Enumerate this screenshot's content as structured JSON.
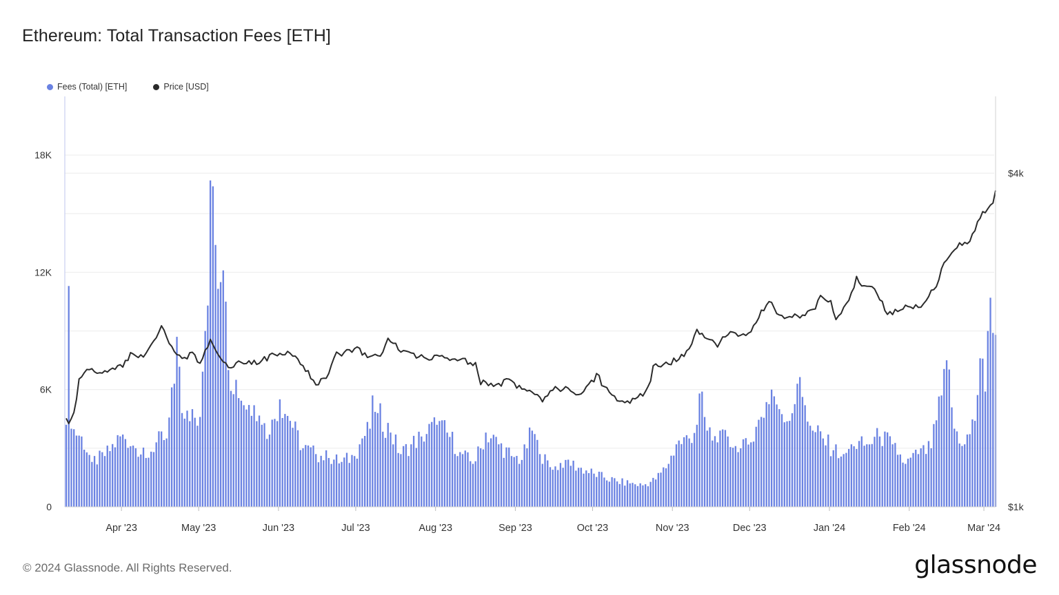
{
  "page": {
    "title": "Ethereum: Total Transaction Fees [ETH]",
    "footer": "© 2024 Glassnode. All Rights Reserved.",
    "brand": "glassnode"
  },
  "colors": {
    "fees": "#6a82e2",
    "price": "#2b2b2b",
    "grid": "#ececec",
    "axis": "#d0d0d0"
  },
  "chart_data": {
    "type": "bar+line",
    "legend": [
      {
        "name": "Fees (Total) [ETH]",
        "color": "#6a82e2"
      },
      {
        "name": "Price [USD]",
        "color": "#2b2b2b"
      }
    ],
    "x_range": [
      "2023-03-10",
      "2024-03-05"
    ],
    "x_ticks": [
      "Apr '23",
      "May '23",
      "Jun '23",
      "Jul '23",
      "Aug '23",
      "Sep '23",
      "Oct '23",
      "Nov '23",
      "Dec '23",
      "Jan '24",
      "Feb '24",
      "Mar '24"
    ],
    "x_tick_dates": [
      "2023-04-01",
      "2023-05-01",
      "2023-06-01",
      "2023-07-01",
      "2023-08-01",
      "2023-09-01",
      "2023-10-01",
      "2023-11-01",
      "2023-12-01",
      "2024-01-01",
      "2024-02-01",
      "2024-03-01"
    ],
    "y_left": {
      "ticks": [
        0,
        6000,
        12000,
        18000
      ],
      "labels": [
        "0",
        "6K",
        "12K",
        "18K"
      ],
      "range": [
        0,
        21000
      ]
    },
    "y_right": {
      "scale": "log",
      "ticks": [
        1000,
        4000
      ],
      "labels": [
        "$1k",
        "$4k"
      ],
      "range": [
        1000,
        5500
      ]
    },
    "fees_series": {
      "name": "Fees (Total) [ETH]",
      "keypoints": [
        [
          "2023-03-10",
          4200
        ],
        [
          "2023-03-11",
          11300
        ],
        [
          "2023-03-12",
          4000
        ],
        [
          "2023-03-16",
          3600
        ],
        [
          "2023-03-20",
          2300
        ],
        [
          "2023-03-25",
          2600
        ],
        [
          "2023-04-01",
          3700
        ],
        [
          "2023-04-06",
          3000
        ],
        [
          "2023-04-10",
          2500
        ],
        [
          "2023-04-14",
          3300
        ],
        [
          "2023-04-18",
          3500
        ],
        [
          "2023-04-21",
          6300
        ],
        [
          "2023-04-22",
          8700
        ],
        [
          "2023-04-24",
          4800
        ],
        [
          "2023-04-28",
          5000
        ],
        [
          "2023-05-01",
          4600
        ],
        [
          "2023-05-03",
          9000
        ],
        [
          "2023-05-04",
          10300
        ],
        [
          "2023-05-05",
          16700
        ],
        [
          "2023-05-06",
          16400
        ],
        [
          "2023-05-07",
          13400
        ],
        [
          "2023-05-09",
          11500
        ],
        [
          "2023-05-10",
          12100
        ],
        [
          "2023-05-12",
          7000
        ],
        [
          "2023-05-15",
          6500
        ],
        [
          "2023-05-18",
          5200
        ],
        [
          "2023-05-22",
          5200
        ],
        [
          "2023-05-25",
          4200
        ],
        [
          "2023-05-28",
          3700
        ],
        [
          "2023-06-01",
          5500
        ],
        [
          "2023-06-05",
          4400
        ],
        [
          "2023-06-10",
          3000
        ],
        [
          "2023-06-15",
          2700
        ],
        [
          "2023-06-20",
          2500
        ],
        [
          "2023-06-25",
          2300
        ],
        [
          "2023-06-30",
          2600
        ],
        [
          "2023-07-03",
          3500
        ],
        [
          "2023-07-06",
          4000
        ],
        [
          "2023-07-07",
          5700
        ],
        [
          "2023-07-09",
          4800
        ],
        [
          "2023-07-14",
          3800
        ],
        [
          "2023-07-18",
          2700
        ],
        [
          "2023-07-22",
          3200
        ],
        [
          "2023-07-26",
          3600
        ],
        [
          "2023-08-01",
          4200
        ],
        [
          "2023-08-05",
          3800
        ],
        [
          "2023-08-10",
          2800
        ],
        [
          "2023-08-15",
          2200
        ],
        [
          "2023-08-18",
          3000
        ],
        [
          "2023-08-20",
          3800
        ],
        [
          "2023-08-25",
          3200
        ],
        [
          "2023-08-30",
          2600
        ],
        [
          "2023-09-03",
          2400
        ],
        [
          "2023-09-07",
          3900
        ],
        [
          "2023-09-10",
          2700
        ],
        [
          "2023-09-15",
          1900
        ],
        [
          "2023-09-20",
          2400
        ],
        [
          "2023-09-25",
          2000
        ],
        [
          "2023-10-01",
          1700
        ],
        [
          "2023-10-05",
          1500
        ],
        [
          "2023-10-10",
          1300
        ],
        [
          "2023-10-15",
          1200
        ],
        [
          "2023-10-20",
          1100
        ],
        [
          "2023-10-25",
          1400
        ],
        [
          "2023-10-30",
          2200
        ],
        [
          "2023-11-02",
          3200
        ],
        [
          "2023-11-07",
          3500
        ],
        [
          "2023-11-10",
          4200
        ],
        [
          "2023-11-11",
          5800
        ],
        [
          "2023-11-14",
          3900
        ],
        [
          "2023-11-18",
          3300
        ],
        [
          "2023-11-22",
          3600
        ],
        [
          "2023-11-26",
          2800
        ],
        [
          "2023-12-01",
          3300
        ],
        [
          "2023-12-05",
          4600
        ],
        [
          "2023-12-09",
          6000
        ],
        [
          "2023-12-12",
          5000
        ],
        [
          "2023-12-16",
          4400
        ],
        [
          "2023-12-19",
          6300
        ],
        [
          "2023-12-22",
          5200
        ],
        [
          "2023-12-25",
          3900
        ],
        [
          "2023-12-29",
          3500
        ],
        [
          "2024-01-02",
          2900
        ],
        [
          "2024-01-06",
          2700
        ],
        [
          "2024-01-10",
          3100
        ],
        [
          "2024-01-15",
          3200
        ],
        [
          "2024-01-20",
          3600
        ],
        [
          "2024-01-25",
          3200
        ],
        [
          "2024-01-30",
          2200
        ],
        [
          "2024-02-04",
          2700
        ],
        [
          "2024-02-09",
          3000
        ],
        [
          "2024-02-13",
          5700
        ],
        [
          "2024-02-15",
          7500
        ],
        [
          "2024-02-18",
          4000
        ],
        [
          "2024-02-22",
          3200
        ],
        [
          "2024-02-26",
          4400
        ],
        [
          "2024-02-28",
          7600
        ],
        [
          "2024-03-01",
          5900
        ],
        [
          "2024-03-02",
          9000
        ],
        [
          "2024-03-03",
          10700
        ],
        [
          "2024-03-04",
          8900
        ],
        [
          "2024-03-05",
          8800
        ]
      ]
    },
    "price_series": {
      "name": "Price [USD]",
      "keypoints": [
        [
          "2023-03-10",
          1430
        ],
        [
          "2023-03-11",
          1400
        ],
        [
          "2023-03-13",
          1470
        ],
        [
          "2023-03-15",
          1680
        ],
        [
          "2023-03-18",
          1790
        ],
        [
          "2023-03-22",
          1750
        ],
        [
          "2023-03-28",
          1780
        ],
        [
          "2023-04-01",
          1800
        ],
        [
          "2023-04-05",
          1900
        ],
        [
          "2023-04-09",
          1850
        ],
        [
          "2023-04-13",
          2000
        ],
        [
          "2023-04-16",
          2100
        ],
        [
          "2023-04-20",
          1950
        ],
        [
          "2023-04-24",
          1840
        ],
        [
          "2023-04-28",
          1900
        ],
        [
          "2023-05-01",
          1820
        ],
        [
          "2023-05-05",
          1990
        ],
        [
          "2023-05-07",
          1900
        ],
        [
          "2023-05-12",
          1790
        ],
        [
          "2023-05-17",
          1820
        ],
        [
          "2023-05-22",
          1820
        ],
        [
          "2023-05-28",
          1860
        ],
        [
          "2023-06-01",
          1900
        ],
        [
          "2023-06-05",
          1880
        ],
        [
          "2023-06-10",
          1800
        ],
        [
          "2023-06-15",
          1650
        ],
        [
          "2023-06-20",
          1740
        ],
        [
          "2023-06-23",
          1880
        ],
        [
          "2023-07-01",
          1920
        ],
        [
          "2023-07-05",
          1880
        ],
        [
          "2023-07-10",
          1870
        ],
        [
          "2023-07-13",
          1990
        ],
        [
          "2023-07-14",
          2000
        ],
        [
          "2023-07-18",
          1900
        ],
        [
          "2023-07-25",
          1860
        ],
        [
          "2023-08-01",
          1860
        ],
        [
          "2023-08-10",
          1850
        ],
        [
          "2023-08-16",
          1800
        ],
        [
          "2023-08-18",
          1680
        ],
        [
          "2023-08-25",
          1650
        ],
        [
          "2023-08-29",
          1710
        ],
        [
          "2023-09-01",
          1640
        ],
        [
          "2023-09-05",
          1630
        ],
        [
          "2023-09-11",
          1560
        ],
        [
          "2023-09-15",
          1630
        ],
        [
          "2023-09-20",
          1640
        ],
        [
          "2023-09-25",
          1590
        ],
        [
          "2023-10-01",
          1690
        ],
        [
          "2023-10-02",
          1740
        ],
        [
          "2023-10-05",
          1640
        ],
        [
          "2023-10-09",
          1580
        ],
        [
          "2023-10-12",
          1540
        ],
        [
          "2023-10-16",
          1560
        ],
        [
          "2023-10-20",
          1600
        ],
        [
          "2023-10-23",
          1700
        ],
        [
          "2023-10-24",
          1790
        ],
        [
          "2023-10-30",
          1810
        ],
        [
          "2023-11-01",
          1840
        ],
        [
          "2023-11-06",
          1890
        ],
        [
          "2023-11-10",
          2080
        ],
        [
          "2023-11-14",
          2010
        ],
        [
          "2023-11-18",
          1960
        ],
        [
          "2023-11-22",
          2050
        ],
        [
          "2023-11-28",
          2040
        ],
        [
          "2023-12-01",
          2090
        ],
        [
          "2023-12-05",
          2240
        ],
        [
          "2023-12-08",
          2350
        ],
        [
          "2023-12-12",
          2200
        ],
        [
          "2023-12-15",
          2220
        ],
        [
          "2023-12-20",
          2210
        ],
        [
          "2023-12-25",
          2260
        ],
        [
          "2023-12-28",
          2380
        ],
        [
          "2024-01-01",
          2350
        ],
        [
          "2024-01-03",
          2200
        ],
        [
          "2024-01-08",
          2330
        ],
        [
          "2024-01-11",
          2580
        ],
        [
          "2024-01-14",
          2480
        ],
        [
          "2024-01-18",
          2470
        ],
        [
          "2024-01-23",
          2220
        ],
        [
          "2024-01-27",
          2260
        ],
        [
          "2024-02-01",
          2300
        ],
        [
          "2024-02-05",
          2300
        ],
        [
          "2024-02-08",
          2420
        ],
        [
          "2024-02-11",
          2500
        ],
        [
          "2024-02-14",
          2780
        ],
        [
          "2024-02-18",
          2900
        ],
        [
          "2024-02-20",
          3000
        ],
        [
          "2024-02-24",
          3000
        ],
        [
          "2024-02-27",
          3250
        ],
        [
          "2024-02-29",
          3380
        ],
        [
          "2024-03-02",
          3420
        ],
        [
          "2024-03-04",
          3550
        ],
        [
          "2024-03-05",
          3750
        ]
      ]
    }
  }
}
